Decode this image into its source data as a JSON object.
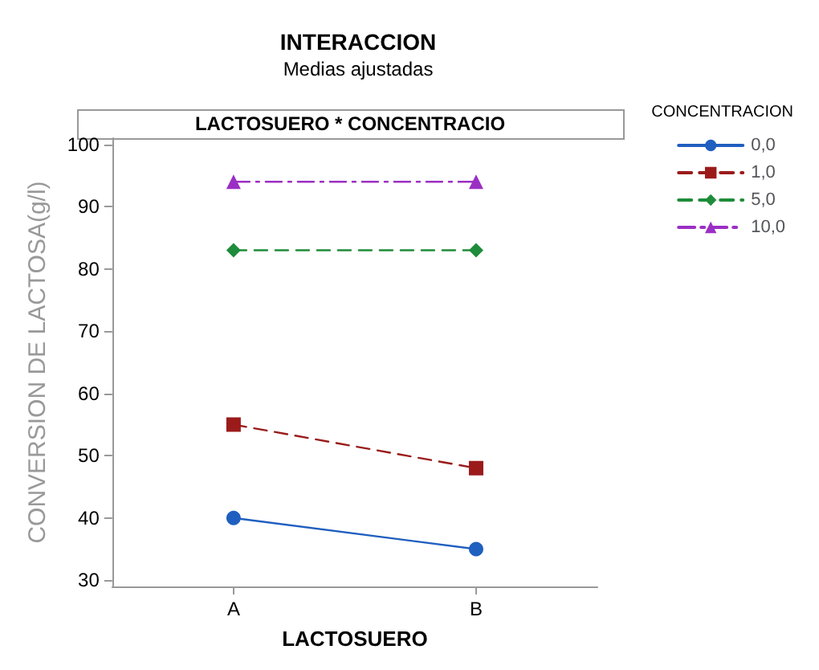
{
  "chart_data": {
    "type": "line",
    "title": "INTERACCION",
    "subtitle": "Medias ajustadas",
    "annotations": [
      "LACTOSUERO * CONCENTRACIO"
    ],
    "xlabel": "LACTOSUERO",
    "ylabel": "CONVERSION DE LACTOSA(g/l)",
    "legend_title": "CONCENTRACION",
    "categories": [
      "A",
      "B"
    ],
    "series": [
      {
        "name": "0,0",
        "color": "#1f5fbf",
        "values": [
          40,
          35
        ],
        "marker": "circle",
        "line_style": "solid"
      },
      {
        "name": "1,0",
        "color": "#9b1b1b",
        "values": [
          55,
          48
        ],
        "marker": "square",
        "line_style": "dashed"
      },
      {
        "name": "5,0",
        "color": "#1e8c3a",
        "values": [
          83,
          83
        ],
        "marker": "diamond",
        "line_style": "dashed"
      },
      {
        "name": "10,0",
        "color": "#9b2fc4",
        "values": [
          94,
          94
        ],
        "marker": "triangle",
        "line_style": "dashdot"
      }
    ],
    "ylim": [
      29,
      101
    ],
    "yticks": [
      30,
      40,
      50,
      60,
      70,
      80,
      90,
      100
    ],
    "grid": false,
    "legend": "top right"
  }
}
